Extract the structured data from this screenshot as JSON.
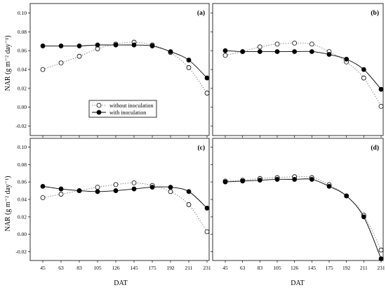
{
  "figure": {
    "ylabel": "NAR (g m⁻² day⁻¹)",
    "xlabel": "DAT",
    "legend": {
      "without": "without inoculation",
      "with": "with inoculation"
    }
  },
  "chart_data": [
    {
      "type": "line",
      "panel": "(a)",
      "x": [
        45,
        63,
        83,
        105,
        126,
        145,
        175,
        192,
        211,
        231
      ],
      "x_tick_labels": [
        "45",
        "63",
        "83",
        "105",
        "126",
        "145",
        "175",
        "192",
        "211",
        "231"
      ],
      "ylim": [
        -0.03,
        0.11
      ],
      "y_ticks": [
        -0.02,
        0.0,
        0.02,
        0.04,
        0.06,
        0.08,
        0.1
      ],
      "y_tick_labels": [
        "-0.02",
        "0.00",
        "0.02",
        "0.04",
        "0.06",
        "0.08",
        "0.10"
      ],
      "series": [
        {
          "name": "without inoculation",
          "style": "dotted, open circles",
          "values": [
            0.04,
            0.047,
            0.054,
            0.062,
            0.067,
            0.069,
            0.066,
            0.058,
            0.042,
            0.015
          ]
        },
        {
          "name": "with inoculation",
          "style": "solid, filled circles",
          "values": [
            0.065,
            0.065,
            0.065,
            0.066,
            0.066,
            0.066,
            0.065,
            0.059,
            0.05,
            0.031
          ]
        }
      ],
      "legend_location": "center-left"
    },
    {
      "type": "line",
      "panel": "(b)",
      "x": [
        45,
        63,
        83,
        105,
        126,
        145,
        175,
        192,
        211,
        231
      ],
      "x_tick_labels": [
        "45",
        "63",
        "83",
        "105",
        "126",
        "145",
        "175",
        "192",
        "211",
        "231"
      ],
      "ylim": [
        -0.03,
        0.11
      ],
      "y_ticks": [
        -0.02,
        0.0,
        0.02,
        0.04,
        0.06,
        0.08,
        0.1
      ],
      "series": [
        {
          "name": "without inoculation",
          "style": "dotted, open circles",
          "values": [
            0.055,
            0.059,
            0.064,
            0.067,
            0.068,
            0.067,
            0.059,
            0.048,
            0.031,
            0.001
          ]
        },
        {
          "name": "with inoculation",
          "style": "solid, filled circles",
          "values": [
            0.06,
            0.059,
            0.059,
            0.059,
            0.059,
            0.059,
            0.056,
            0.051,
            0.04,
            0.019
          ]
        }
      ]
    },
    {
      "type": "line",
      "panel": "(c)",
      "x": [
        45,
        63,
        83,
        105,
        126,
        145,
        175,
        192,
        211,
        231
      ],
      "x_tick_labels": [
        "45",
        "63",
        "83",
        "105",
        "126",
        "145",
        "175",
        "192",
        "211",
        "231"
      ],
      "ylim": [
        -0.03,
        0.11
      ],
      "y_ticks": [
        -0.02,
        0.0,
        0.02,
        0.04,
        0.06,
        0.08,
        0.1
      ],
      "y_tick_labels": [
        "-0.02",
        "0.00",
        "0.02",
        "0.04",
        "0.06",
        "0.08",
        "0.10"
      ],
      "series": [
        {
          "name": "without inoculation",
          "style": "dotted, open circles",
          "values": [
            0.042,
            0.046,
            0.05,
            0.054,
            0.057,
            0.059,
            0.056,
            0.049,
            0.034,
            0.003
          ]
        },
        {
          "name": "with inoculation",
          "style": "solid, filled circles",
          "values": [
            0.055,
            0.052,
            0.05,
            0.049,
            0.05,
            0.052,
            0.054,
            0.054,
            0.049,
            0.03
          ]
        }
      ]
    },
    {
      "type": "line",
      "panel": "(d)",
      "x": [
        45,
        63,
        83,
        105,
        126,
        145,
        175,
        192,
        211,
        231
      ],
      "x_tick_labels": [
        "45",
        "63",
        "83",
        "105",
        "126",
        "145",
        "175",
        "192",
        "211",
        "231"
      ],
      "ylim": [
        -0.03,
        0.11
      ],
      "y_ticks": [
        -0.02,
        0.0,
        0.02,
        0.04,
        0.06,
        0.08,
        0.1
      ],
      "series": [
        {
          "name": "without inoculation",
          "style": "dotted, open circles",
          "values": [
            0.061,
            0.062,
            0.064,
            0.065,
            0.066,
            0.065,
            0.057,
            0.044,
            0.022,
            -0.018
          ]
        },
        {
          "name": "with inoculation",
          "style": "solid, filled circles",
          "values": [
            0.06,
            0.061,
            0.062,
            0.063,
            0.063,
            0.063,
            0.055,
            0.044,
            0.02,
            -0.028
          ]
        }
      ]
    }
  ]
}
